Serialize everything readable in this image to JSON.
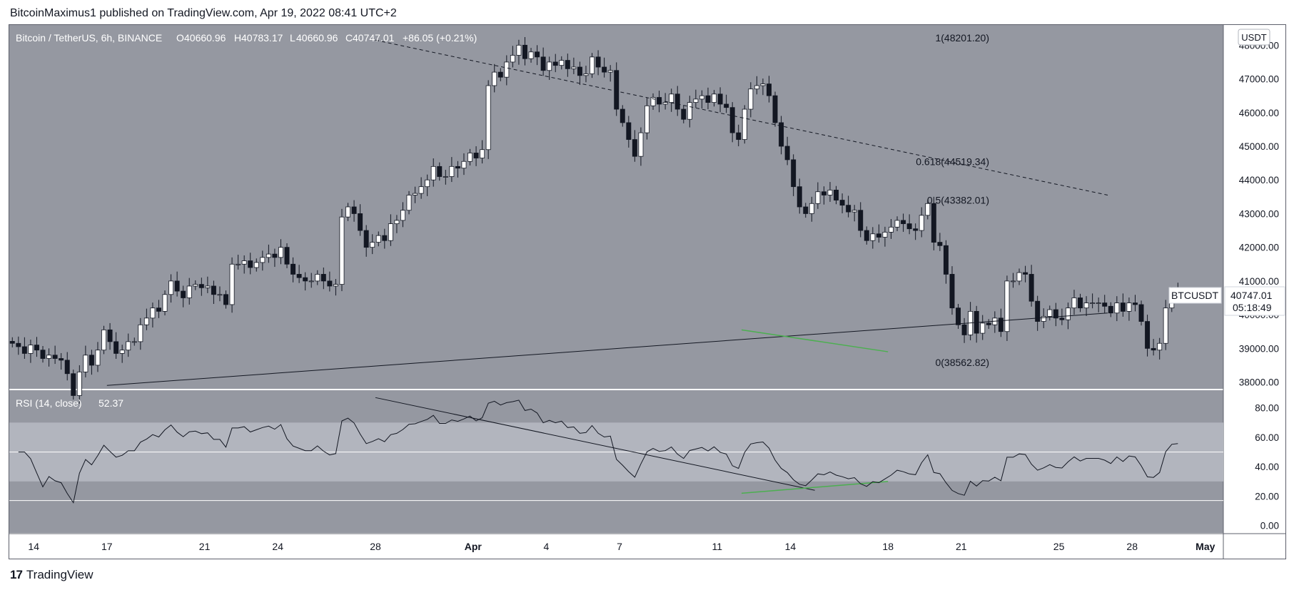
{
  "header": {
    "publisher_text": "BitcoinMaximus1 published on TradingView.com, Apr 19, 2022 08:41 UTC+2"
  },
  "footer": {
    "brand": "TradingView",
    "logo_icon": "tradingview-logo-icon"
  },
  "colors": {
    "panel_bg": "#9598a1",
    "rsi_band": "#b2b5be",
    "bull": "#ffffff",
    "bear": "#131722",
    "divergence": "#4caf50"
  },
  "chart_data": [
    {
      "type": "candlestick",
      "symbol_text": "Bitcoin / TetherUS, 6h, BINANCE",
      "ohlc": {
        "o_label": "O",
        "o": "40660.96",
        "h_label": "H",
        "h": "40783.17",
        "l_label": "L",
        "l": "40660.96",
        "c_label": "C",
        "c": "40747.01",
        "change": "+86.05 (+0.21%)"
      },
      "currency_badge": "USDT",
      "ylim": [
        37800,
        48600
      ],
      "y_ticks": [
        "48000.00",
        "47000.00",
        "46000.00",
        "45000.00",
        "44000.00",
        "43000.00",
        "42000.00",
        "41000.00",
        "40000.00",
        "39000.00",
        "38000.00"
      ],
      "x_ticks": [
        "14",
        "17",
        "21",
        "24",
        "28",
        "Apr",
        "4",
        "7",
        "11",
        "14",
        "18",
        "21",
        "25",
        "28",
        "May"
      ],
      "price_label": {
        "symbol": "BTCUSDT",
        "price": "40747.01",
        "countdown": "05:18:49"
      },
      "fib_levels": [
        {
          "label": "1(48201.20)",
          "value": 48201.2
        },
        {
          "label": "0.618(44519.34)",
          "value": 44519.34
        },
        {
          "label": "0.5(43382.01)",
          "value": 43382.01
        },
        {
          "label": "0(38562.82)",
          "value": 38562.82
        }
      ],
      "trendlines": [
        {
          "name": "descending resistance",
          "style": "dashed",
          "from": [
            "Mar 28",
            48150
          ],
          "to": [
            "Apr 27",
            43550
          ]
        },
        {
          "name": "ascending support",
          "style": "solid",
          "from": [
            "Mar 17",
            37900
          ],
          "to": [
            "Apr 27",
            40050
          ]
        },
        {
          "name": "bullish divergence (price)",
          "style": "green",
          "from": [
            "Apr 12",
            39550
          ],
          "to": [
            "Apr 18",
            38900
          ]
        }
      ],
      "closes": [
        39150,
        39050,
        38850,
        39100,
        38950,
        38700,
        38800,
        38700,
        38650,
        38250,
        37600,
        38300,
        38800,
        38500,
        38950,
        39550,
        39200,
        38850,
        38950,
        39200,
        39200,
        39700,
        39900,
        40200,
        40100,
        40600,
        41000,
        40700,
        40500,
        40850,
        40900,
        40800,
        40850,
        40600,
        40600,
        40300,
        41500,
        41500,
        41600,
        41400,
        41550,
        41700,
        41800,
        41700,
        42000,
        41500,
        41200,
        41100,
        41000,
        41000,
        41200,
        41000,
        40850,
        40900,
        42900,
        43200,
        43000,
        42500,
        42000,
        42150,
        42350,
        42200,
        42700,
        42800,
        43100,
        43550,
        43600,
        43800,
        44000,
        44400,
        44100,
        44100,
        44400,
        44350,
        44550,
        44800,
        44650,
        44900,
        46800,
        47200,
        47050,
        47500,
        47700,
        48000,
        47600,
        47800,
        47650,
        47250,
        47500,
        47400,
        47550,
        47300,
        47350,
        47100,
        47150,
        47650,
        47350,
        47200,
        47250,
        46100,
        45700,
        45200,
        44700,
        45400,
        46200,
        46450,
        46250,
        46300,
        46550,
        46100,
        45800,
        46300,
        46400,
        46500,
        46300,
        46550,
        46250,
        46150,
        45400,
        45200,
        46100,
        46700,
        46800,
        46850,
        46500,
        45700,
        45000,
        44600,
        43800,
        43200,
        43000,
        43300,
        43650,
        43550,
        43700,
        43400,
        43250,
        43050,
        43100,
        42500,
        42200,
        42400,
        42300,
        42450,
        42600,
        42800,
        42700,
        42550,
        42500,
        42950,
        43300,
        42150,
        42050,
        41200,
        40200,
        39700,
        39400,
        40100,
        39450,
        39750,
        39700,
        39900,
        39500,
        41000,
        41000,
        41250,
        41200,
        40400,
        39800,
        39950,
        40150,
        39900,
        39850,
        40200,
        40500,
        40200,
        40350,
        40350,
        40350,
        40250,
        40050,
        40350,
        40100,
        40350,
        40300,
        39800,
        39000,
        38950,
        39150,
        40200,
        40700,
        40750
      ],
      "rsi_panel": {
        "label": "RSI (14, close)",
        "value": "52.37",
        "ylim": [
          -5,
          92
        ],
        "y_ticks": [
          "80.00",
          "60.00",
          "40.00",
          "20.00",
          "0.00"
        ],
        "band": [
          30,
          70
        ],
        "midline": 50,
        "trendlines": [
          {
            "name": "rsi descending resistance",
            "from": [
              "Mar 28",
              87
            ],
            "to": [
              "Apr 15",
              24
            ]
          },
          {
            "name": "rsi bullish divergence",
            "from": [
              "Apr 12",
              22
            ],
            "to": [
              "Apr 18",
              30
            ]
          }
        ]
      }
    }
  ]
}
